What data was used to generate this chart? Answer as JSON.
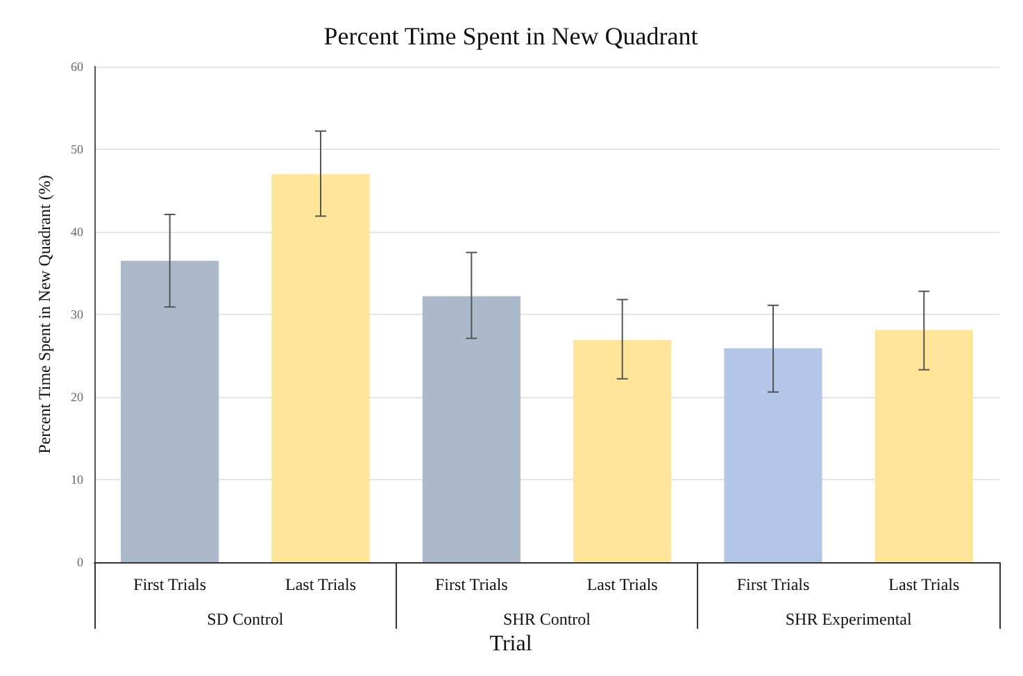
{
  "chart_data": {
    "type": "bar",
    "title": "Percent Time Spent in New Quadrant",
    "xlabel": "Trial",
    "ylabel": "Percent Time Spent in New Quadrant (%)",
    "categories": [
      "First Trials",
      "Last Trials",
      "First Trials",
      "Last Trials",
      "First Trials",
      "Last Trials"
    ],
    "values": [
      36.5,
      47.0,
      32.2,
      26.9,
      25.9,
      28.1
    ],
    "errors": [
      [
        30.9,
        42.1
      ],
      [
        41.9,
        52.2
      ],
      [
        27.1,
        37.5
      ],
      [
        22.2,
        31.8
      ],
      [
        20.6,
        31.1
      ],
      [
        23.3,
        32.8
      ]
    ],
    "colors": [
      "#acb9ca",
      "#fee599",
      "#acb9ca",
      "#fee599",
      "#b4c6e7",
      "#fee599"
    ],
    "annotations": [
      "SD Control",
      "SHR Control",
      "SHR Experimental"
    ],
    "ylim": [
      0,
      60
    ],
    "yticks": [
      0,
      10,
      20,
      30,
      40,
      50,
      60
    ],
    "grid": "y"
  }
}
